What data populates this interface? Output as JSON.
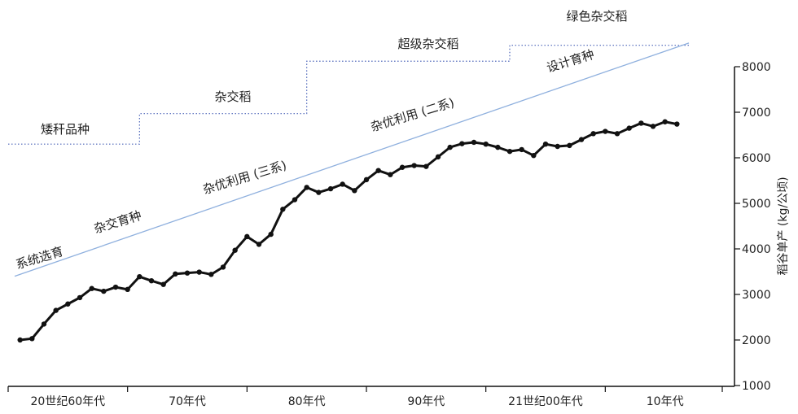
{
  "chart_data": {
    "type": "line",
    "title": "",
    "xlabel": "",
    "ylabel": "稻谷单产 (kg/公顷)",
    "ylim": [
      1000,
      8000
    ],
    "yticks": [
      1000,
      2000,
      3000,
      4000,
      5000,
      6000,
      7000,
      8000
    ],
    "y_axis_side": "right",
    "grid": false,
    "xlim": [
      1960,
      2020
    ],
    "x_categories": [
      "20世纪60年代",
      "70年代",
      "80年代",
      "90年代",
      "21世纪00年代",
      "10年代"
    ],
    "colors": {
      "series": "#111111",
      "stages": "#4a63b8",
      "trend": "#8fb0de",
      "axis": "#111111"
    },
    "series": [
      {
        "x": [
          1961,
          1962,
          1963,
          1964,
          1965,
          1966,
          1967,
          1968,
          1969,
          1970,
          1971,
          1972,
          1973,
          1974,
          1975,
          1976,
          1977,
          1978,
          1979,
          1980,
          1981,
          1982,
          1983,
          1984,
          1985,
          1986,
          1987,
          1988,
          1989,
          1990,
          1991,
          1992,
          1993,
          1994,
          1995,
          1996,
          1997,
          1998,
          1999,
          2000,
          2001,
          2002,
          2003,
          2004,
          2005,
          2006,
          2007,
          2008,
          2009,
          2010,
          2011,
          2012,
          2013,
          2014,
          2015,
          2016
        ],
        "values": [
          2000,
          2030,
          2350,
          2650,
          2790,
          2930,
          3130,
          3070,
          3160,
          3110,
          3390,
          3300,
          3220,
          3450,
          3470,
          3490,
          3440,
          3600,
          3970,
          4270,
          4100,
          4320,
          4870,
          5080,
          5350,
          5240,
          5320,
          5420,
          5280,
          5520,
          5720,
          5630,
          5790,
          5830,
          5810,
          6020,
          6230,
          6310,
          6340,
          6300,
          6230,
          6140,
          6180,
          6050,
          6300,
          6250,
          6270,
          6400,
          6530,
          6580,
          6530,
          6650,
          6760,
          6690,
          6790,
          6740
        ]
      }
    ],
    "stage_lines": [
      {
        "label": "矮秆品种",
        "x_start": 1960,
        "x_end": 1971,
        "y": 6300
      },
      {
        "label": "杂交稻",
        "x_start": 1971,
        "x_end": 1985,
        "y": 6970
      },
      {
        "label": "超级杂交稻",
        "x_start": 1985,
        "x_end": 2002,
        "y": 8120
      },
      {
        "label": "绿色杂交稻",
        "x_start": 2002,
        "x_end": 2017,
        "y": 8470
      }
    ],
    "trend_line": {
      "x_start": 1960,
      "y_start": 3400,
      "x_end": 2017,
      "y_end": 8520
    },
    "trend_labels": [
      "系统选育",
      "杂交育种",
      "杂优利用 (三系)",
      "杂优利用 (二系)",
      "设计育种"
    ]
  }
}
